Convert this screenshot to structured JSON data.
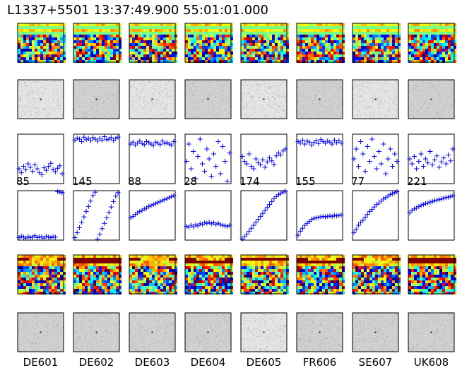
{
  "figure": {
    "title": "L1337+5501 13:37:49.900 55:01:01.000"
  },
  "stations": [
    "DE601",
    "DE602",
    "DE603",
    "DE604",
    "DE605",
    "FR606",
    "SE607",
    "UK608"
  ],
  "panel_rows": [
    "waterfall-amplitude",
    "fringe-amplitude",
    "scatter-amplitude",
    "scatter-phase",
    "waterfall-phase",
    "fringe-phase"
  ],
  "colors": {
    "marker": "#0000ff",
    "frame": "#000000",
    "flag": "#800000",
    "band": "#7fff7f"
  },
  "chart_data": {
    "type": "scatter",
    "title": "L1337+5501 13:37:49.900 55:01:01.000",
    "x_categories": [
      "DE601",
      "DE602",
      "DE603",
      "DE604",
      "DE605",
      "FR606",
      "SE607",
      "UK608"
    ],
    "panel_numbers": [
      85,
      145,
      88,
      28,
      174,
      155,
      77,
      221
    ],
    "amplitude_series": [
      {
        "values": [
          0.3,
          0.22,
          0.35,
          0.28,
          0.4,
          0.33,
          0.25,
          0.38,
          0.3,
          0.22,
          0.18,
          0.32,
          0.27,
          0.35,
          0.41,
          0.29,
          0.24,
          0.31,
          0.36,
          0.2
        ]
      },
      {
        "values": [
          0.88,
          0.92,
          0.9,
          0.85,
          0.94,
          0.89,
          0.91,
          0.87,
          0.93,
          0.9,
          0.86,
          0.92,
          0.88,
          0.95,
          0.89,
          0.9,
          0.93,
          0.87,
          0.91,
          0.94
        ]
      },
      {
        "values": [
          0.8,
          0.84,
          0.78,
          0.82,
          0.86,
          0.81,
          0.79,
          0.85,
          0.83,
          0.8,
          0.77,
          0.84,
          0.82,
          0.79,
          0.86,
          0.81,
          0.83,
          0.8,
          0.78,
          0.85
        ]
      },
      {
        "values": [
          0.45,
          0.8,
          0.3,
          0.65,
          0.1,
          0.55,
          0.9,
          0.4,
          0.25,
          0.7,
          0.5,
          0.15,
          0.6,
          0.35,
          0.85,
          0.2,
          0.75,
          0.45,
          0.05,
          0.62
        ]
      },
      {
        "values": [
          0.55,
          0.45,
          0.4,
          0.6,
          0.35,
          0.3,
          0.5,
          0.42,
          0.38,
          0.48,
          0.33,
          0.44,
          0.52,
          0.46,
          0.39,
          0.56,
          0.62,
          0.58,
          0.66,
          0.7
        ]
      },
      {
        "values": [
          0.85,
          0.82,
          0.88,
          0.8,
          0.86,
          0.84,
          0.78,
          0.83,
          0.87,
          0.81,
          0.89,
          0.85,
          0.82,
          0.86,
          0.84,
          0.8,
          0.88,
          0.83,
          0.87,
          0.82
        ]
      },
      {
        "values": [
          0.5,
          0.7,
          0.35,
          0.85,
          0.6,
          0.25,
          0.75,
          0.45,
          0.9,
          0.55,
          0.3,
          0.65,
          0.4,
          0.8,
          0.2,
          0.5,
          0.7,
          0.35,
          0.6,
          0.45
        ]
      },
      {
        "values": [
          0.5,
          0.4,
          0.55,
          0.3,
          0.45,
          0.6,
          0.35,
          0.5,
          0.42,
          0.65,
          0.38,
          0.48,
          0.56,
          0.33,
          0.44,
          0.52,
          0.4,
          0.58,
          0.46,
          0.7
        ]
      }
    ],
    "phase_series": [
      {
        "values": [
          0.05,
          0.08,
          0.06,
          0.04,
          0.07,
          0.05,
          0.06,
          0.09,
          0.05,
          0.07,
          0.06,
          0.04,
          0.08,
          0.06,
          0.05,
          0.07,
          0.06,
          0.98,
          0.97,
          0.96
        ]
      },
      {
        "values": [
          0.05,
          0.15,
          0.25,
          0.36,
          0.47,
          0.58,
          0.68,
          0.79,
          0.9,
          0.97,
          0.02,
          0.12,
          0.23,
          0.34,
          0.45,
          0.56,
          0.67,
          0.78,
          0.89,
          0.96
        ]
      },
      {
        "values": [
          0.45,
          0.48,
          0.52,
          0.55,
          0.58,
          0.6,
          0.63,
          0.65,
          0.68,
          0.7,
          0.72,
          0.74,
          0.76,
          0.78,
          0.8,
          0.82,
          0.84,
          0.86,
          0.88,
          0.9
        ]
      },
      {
        "values": [
          0.28,
          0.26,
          0.3,
          0.27,
          0.31,
          0.29,
          0.33,
          0.32,
          0.35,
          0.34,
          0.36,
          0.33,
          0.35,
          0.32,
          0.34,
          0.31,
          0.3,
          0.29,
          0.28,
          0.3
        ]
      },
      {
        "values": [
          0.02,
          0.07,
          0.12,
          0.18,
          0.24,
          0.3,
          0.36,
          0.42,
          0.48,
          0.54,
          0.6,
          0.66,
          0.72,
          0.78,
          0.84,
          0.88,
          0.92,
          0.95,
          0.97,
          0.99
        ]
      },
      {
        "values": [
          0.1,
          0.18,
          0.24,
          0.3,
          0.34,
          0.38,
          0.42,
          0.44,
          0.45,
          0.46,
          0.47,
          0.48,
          0.47,
          0.48,
          0.49,
          0.48,
          0.5,
          0.49,
          0.5,
          0.51
        ]
      },
      {
        "values": [
          0.15,
          0.22,
          0.3,
          0.36,
          0.4,
          0.46,
          0.52,
          0.58,
          0.62,
          0.67,
          0.72,
          0.75,
          0.79,
          0.83,
          0.86,
          0.89,
          0.92,
          0.94,
          0.96,
          0.98
        ]
      },
      {
        "values": [
          0.55,
          0.6,
          0.63,
          0.65,
          0.68,
          0.7,
          0.72,
          0.74,
          0.75,
          0.77,
          0.78,
          0.8,
          0.81,
          0.82,
          0.83,
          0.85,
          0.86,
          0.87,
          0.88,
          0.9
        ]
      }
    ],
    "xlim": [
      0,
      1
    ],
    "ylim": [
      0,
      1
    ]
  }
}
